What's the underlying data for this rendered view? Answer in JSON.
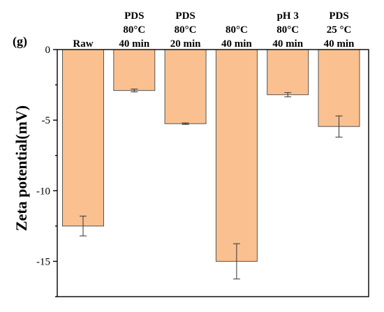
{
  "panel_label": "(g)",
  "chart_data": {
    "type": "bar",
    "title": "",
    "xlabel": "",
    "ylabel": "Zeta potential(mV)",
    "ylim": [
      -17.5,
      0
    ],
    "yticks": [
      0,
      -5,
      -10,
      -15
    ],
    "ytick_labels": [
      "0",
      "-5",
      "-10",
      "-15"
    ],
    "categories": [
      [
        "Raw"
      ],
      [
        "PDS",
        "80°C",
        "40 min"
      ],
      [
        "PDS",
        "80°C",
        "20 min"
      ],
      [
        "80°C",
        "40 min"
      ],
      [
        "pH 3",
        "80°C",
        "40 min"
      ],
      [
        "PDS",
        "25 °C",
        "40 min"
      ]
    ],
    "values": [
      -12.5,
      -2.9,
      -5.25,
      -15.0,
      -3.2,
      -5.45
    ],
    "errors": [
      0.7,
      0.1,
      0.05,
      1.25,
      0.15,
      0.75
    ],
    "bar_color": "#FAC090",
    "grid": false,
    "legend": "none"
  }
}
